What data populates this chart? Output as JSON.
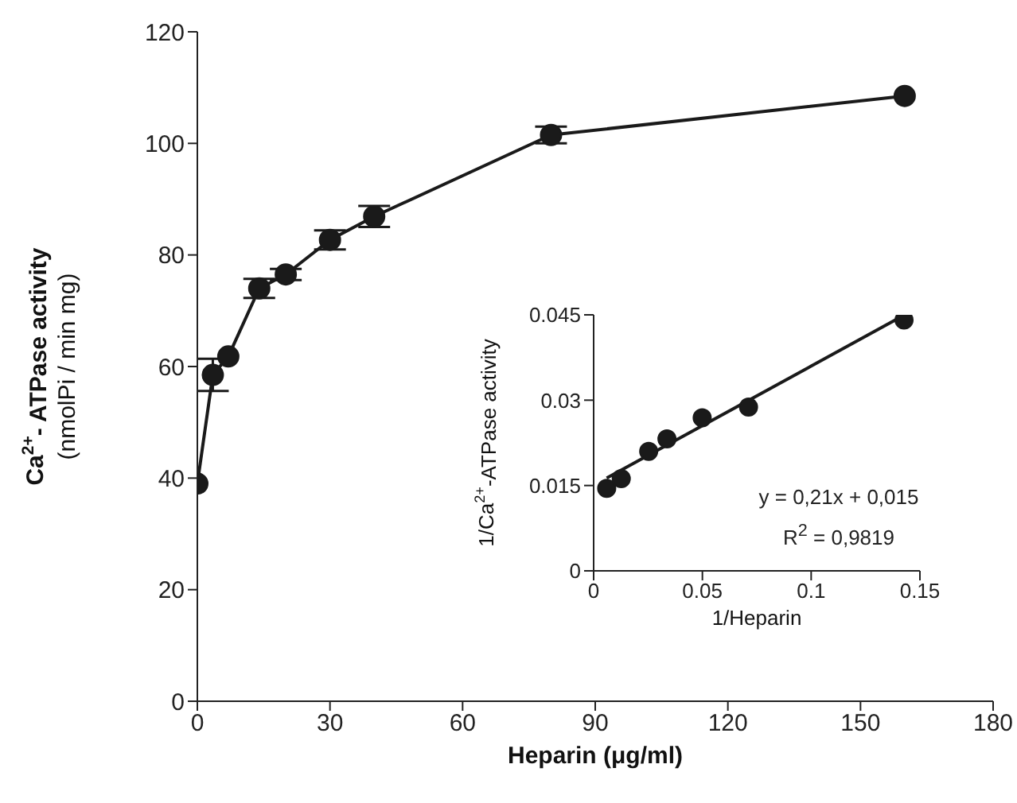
{
  "chart_data": [
    {
      "type": "line",
      "xlabel": "Heparin (μg/ml)",
      "ylabel": "Ca$^{2+}$- ATPase activity\n(nmolPi / min mg)",
      "x": [
        0,
        3.5,
        7,
        14,
        20,
        30,
        40,
        80,
        160
      ],
      "series": [
        {
          "color": "#1a1a1a",
          "values": [
            39,
            58.5,
            61.8,
            74,
            76.5,
            82.7,
            86.9,
            101.5,
            108.5
          ],
          "errors": [
            null,
            2.9,
            null,
            1.7,
            1,
            1.7,
            1.9,
            1.5,
            null
          ]
        }
      ],
      "xlim": [
        0,
        180
      ],
      "xticks": [
        0,
        30,
        60,
        90,
        120,
        150,
        180
      ],
      "ylim": [
        0,
        120
      ],
      "yticks": [
        0,
        20,
        40,
        60,
        80,
        100,
        120
      ],
      "marker": "circle",
      "line_style": "solid"
    },
    {
      "type": "scatter",
      "xlabel": "1/Heparin",
      "ylabel": "1/Ca$^{2+}$-ATPase activity",
      "series": [
        {
          "color": "#1a1a1a",
          "marker": "circle",
          "x": [
            0.006,
            0.0127,
            0.0253,
            0.0337,
            0.0499,
            0.0712,
            0.1427
          ],
          "values": [
            0.0145,
            0.0162,
            0.021,
            0.0232,
            0.0269,
            0.0288,
            0.0441
          ]
        },
        {
          "type": "line",
          "color": "#1a1a1a",
          "x": [
            0.006,
            0.143
          ],
          "values": [
            0.0163,
            0.045
          ]
        }
      ],
      "xlim": [
        0,
        0.15
      ],
      "xticks": [
        0,
        0.05,
        0.1,
        0.15
      ],
      "ylim": [
        0,
        0.045
      ],
      "yticks": [
        0,
        0.015,
        0.03,
        0.045
      ],
      "annotations": [
        "y = 0,21x + 0,015",
        "R$^{2}$ = 0,9819"
      ]
    }
  ]
}
